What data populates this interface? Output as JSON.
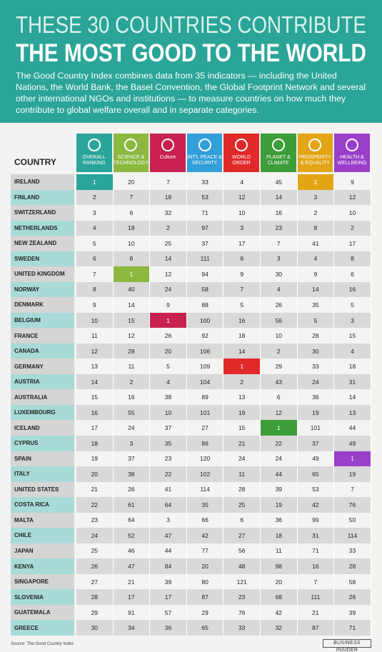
{
  "header": {
    "title_line1": "THESE 30 COUNTRIES CONTRIBUTE",
    "title_line2": "THE MOST GOOD TO THE WORLD",
    "description": "The Good Country Index combines data from 35 indicators — including the United Nations, the World Bank, the Basel Convention, the Global Footprint Network and several other international NGOs and institutions — to measure countries on how much they contribute to global welfare overall and in separate categories."
  },
  "table": {
    "country_header": "COUNTRY",
    "columns": [
      {
        "label": "OVERALL RANKING",
        "color": "#2ba59c"
      },
      {
        "label": "SCIENCE & TECHNOLOGY",
        "color": "#8cb840"
      },
      {
        "label": "Culture",
        "color": "#c8214f"
      },
      {
        "label": "INT'L PEACE & SECURITY",
        "color": "#329fda"
      },
      {
        "label": "WORLD ORDER",
        "color": "#e1292a"
      },
      {
        "label": "PLANET & CLIMATE",
        "color": "#3c9d3a"
      },
      {
        "label": "PROSPERITY & EQUALITY",
        "color": "#e3a516"
      },
      {
        "label": "HEALTH & WELLBEING",
        "color": "#9a3fca"
      }
    ],
    "rows": [
      [
        "IRELAND",
        1,
        20,
        7,
        33,
        4,
        45,
        1,
        9
      ],
      [
        "FINLAND",
        2,
        7,
        18,
        53,
        12,
        14,
        3,
        12
      ],
      [
        "SWITZERLAND",
        3,
        6,
        32,
        71,
        10,
        16,
        2,
        10
      ],
      [
        "NETHERLANDS",
        4,
        18,
        2,
        97,
        3,
        23,
        8,
        2
      ],
      [
        "NEW ZEALAND",
        5,
        10,
        25,
        37,
        17,
        7,
        41,
        17
      ],
      [
        "SWEDEN",
        6,
        8,
        14,
        111,
        8,
        3,
        4,
        8
      ],
      [
        "UNITED KINGDOM",
        7,
        1,
        12,
        94,
        9,
        30,
        9,
        6
      ],
      [
        "NORWAY",
        8,
        40,
        24,
        58,
        7,
        4,
        14,
        16
      ],
      [
        "DENMARK",
        9,
        14,
        9,
        88,
        5,
        26,
        35,
        5
      ],
      [
        "BELGIUM",
        10,
        15,
        1,
        100,
        16,
        56,
        5,
        3
      ],
      [
        "FRANCE",
        11,
        12,
        26,
        92,
        18,
        10,
        28,
        15
      ],
      [
        "CANADA",
        12,
        28,
        20,
        106,
        14,
        2,
        30,
        4
      ],
      [
        "GERMANY",
        13,
        11,
        5,
        109,
        1,
        29,
        33,
        18
      ],
      [
        "AUSTRIA",
        14,
        2,
        4,
        104,
        2,
        43,
        24,
        31
      ],
      [
        "AUSTRALIA",
        15,
        16,
        38,
        89,
        13,
        6,
        36,
        14
      ],
      [
        "LUXEMBOURG",
        16,
        55,
        10,
        101,
        19,
        12,
        19,
        13
      ],
      [
        "ICELAND",
        17,
        24,
        37,
        27,
        15,
        1,
        101,
        44
      ],
      [
        "CYPRUS",
        18,
        3,
        35,
        86,
        21,
        22,
        37,
        49
      ],
      [
        "SPAIN",
        19,
        37,
        23,
        120,
        24,
        24,
        49,
        1
      ],
      [
        "ITALY",
        20,
        38,
        22,
        102,
        11,
        44,
        65,
        19
      ],
      [
        "UNITED STATES",
        21,
        26,
        41,
        114,
        28,
        39,
        53,
        7
      ],
      [
        "COSTA RICA",
        22,
        61,
        64,
        35,
        25,
        19,
        42,
        76
      ],
      [
        "MALTA",
        23,
        64,
        3,
        66,
        6,
        36,
        99,
        50
      ],
      [
        "CHILE",
        24,
        52,
        47,
        42,
        27,
        18,
        31,
        114
      ],
      [
        "JAPAN",
        25,
        46,
        44,
        77,
        56,
        11,
        71,
        33
      ],
      [
        "KENYA",
        26,
        47,
        84,
        20,
        48,
        98,
        16,
        28
      ],
      [
        "SINGAPORE",
        27,
        21,
        39,
        80,
        121,
        20,
        7,
        58
      ],
      [
        "SLOVENIA",
        28,
        17,
        17,
        87,
        23,
        68,
        111,
        26
      ],
      [
        "GUATEMALA",
        29,
        91,
        57,
        29,
        76,
        42,
        21,
        39
      ],
      [
        "GREECE",
        30,
        34,
        36,
        65,
        33,
        32,
        87,
        71
      ]
    ]
  },
  "footer": {
    "source": "Source: The Good Country Index",
    "brand": "BUSINESS INSIDER"
  }
}
